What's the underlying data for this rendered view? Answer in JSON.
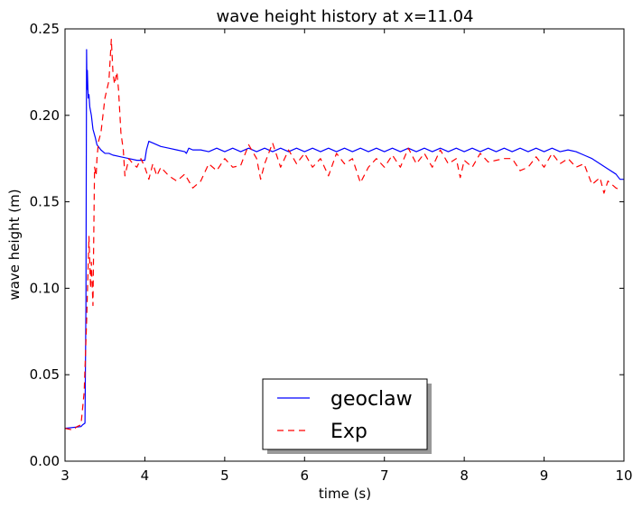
{
  "chart_data": {
    "type": "line",
    "title": "wave height history at x=11.04",
    "xlabel": "time (s)",
    "ylabel": "wave height (m)",
    "xlim": [
      3,
      10
    ],
    "ylim": [
      0,
      0.25
    ],
    "xticks": [
      3,
      4,
      5,
      6,
      7,
      8,
      9,
      10
    ],
    "xtick_labels": [
      "3",
      "4",
      "5",
      "6",
      "7",
      "8",
      "9",
      "10"
    ],
    "yticks": [
      0,
      0.05,
      0.1,
      0.15,
      0.2,
      0.25
    ],
    "ytick_labels": [
      "0.00",
      "0.05",
      "0.10",
      "0.15",
      "0.20",
      "0.25"
    ],
    "grid": false,
    "legend_position": "lower-center",
    "series": [
      {
        "name": "geoclaw",
        "color": "#0000ff",
        "dash": "solid",
        "x": [
          3.0,
          3.2,
          3.22,
          3.25,
          3.262,
          3.27,
          3.275,
          3.28,
          3.29,
          3.3,
          3.31,
          3.33,
          3.35,
          3.38,
          3.4,
          3.45,
          3.5,
          3.55,
          3.6,
          3.7,
          3.8,
          3.9,
          4.0,
          4.02,
          4.05,
          4.1,
          4.2,
          4.3,
          4.4,
          4.5,
          4.52,
          4.55,
          4.6,
          4.7,
          4.8,
          4.9,
          5.0,
          5.1,
          5.2,
          5.3,
          5.4,
          5.5,
          5.6,
          5.7,
          5.8,
          5.9,
          6.0,
          6.1,
          6.2,
          6.3,
          6.4,
          6.5,
          6.6,
          6.7,
          6.8,
          6.9,
          7.0,
          7.1,
          7.2,
          7.3,
          7.4,
          7.5,
          7.6,
          7.7,
          7.8,
          7.9,
          8.0,
          8.1,
          8.2,
          8.3,
          8.4,
          8.5,
          8.6,
          8.7,
          8.8,
          8.9,
          9.0,
          9.1,
          9.2,
          9.3,
          9.4,
          9.5,
          9.6,
          9.7,
          9.8,
          9.9,
          9.95,
          10.0
        ],
        "y": [
          0.019,
          0.02,
          0.021,
          0.022,
          0.09,
          0.238,
          0.215,
          0.226,
          0.21,
          0.212,
          0.205,
          0.2,
          0.192,
          0.187,
          0.183,
          0.18,
          0.178,
          0.178,
          0.177,
          0.176,
          0.175,
          0.174,
          0.174,
          0.18,
          0.185,
          0.184,
          0.182,
          0.181,
          0.18,
          0.179,
          0.178,
          0.181,
          0.18,
          0.18,
          0.179,
          0.181,
          0.179,
          0.181,
          0.179,
          0.181,
          0.179,
          0.181,
          0.179,
          0.181,
          0.179,
          0.181,
          0.179,
          0.181,
          0.179,
          0.181,
          0.179,
          0.181,
          0.179,
          0.181,
          0.179,
          0.181,
          0.179,
          0.181,
          0.179,
          0.181,
          0.179,
          0.181,
          0.179,
          0.181,
          0.179,
          0.181,
          0.179,
          0.181,
          0.179,
          0.181,
          0.179,
          0.181,
          0.179,
          0.181,
          0.179,
          0.181,
          0.179,
          0.181,
          0.179,
          0.18,
          0.179,
          0.177,
          0.175,
          0.172,
          0.169,
          0.166,
          0.163,
          0.163
        ]
      },
      {
        "name": "Exp",
        "color": "#ff0000",
        "dash": "dashed",
        "x": [
          3.0,
          3.1,
          3.15,
          3.2,
          3.24,
          3.27,
          3.3,
          3.32,
          3.33,
          3.35,
          3.37,
          3.39,
          3.4,
          3.42,
          3.45,
          3.5,
          3.55,
          3.58,
          3.6,
          3.62,
          3.65,
          3.67,
          3.7,
          3.73,
          3.75,
          3.8,
          3.85,
          3.9,
          3.95,
          4.0,
          4.05,
          4.1,
          4.15,
          4.2,
          4.3,
          4.4,
          4.5,
          4.6,
          4.7,
          4.8,
          4.9,
          5.0,
          5.1,
          5.2,
          5.3,
          5.4,
          5.45,
          5.5,
          5.6,
          5.7,
          5.8,
          5.9,
          6.0,
          6.1,
          6.2,
          6.3,
          6.4,
          6.5,
          6.6,
          6.7,
          6.8,
          6.9,
          7.0,
          7.1,
          7.2,
          7.3,
          7.4,
          7.5,
          7.6,
          7.7,
          7.8,
          7.9,
          7.95,
          8.0,
          8.1,
          8.2,
          8.3,
          8.4,
          8.5,
          8.6,
          8.7,
          8.8,
          8.9,
          9.0,
          9.1,
          9.2,
          9.3,
          9.4,
          9.5,
          9.6,
          9.7,
          9.75,
          9.8,
          9.9,
          9.95
        ],
        "y": [
          0.019,
          0.018,
          0.02,
          0.021,
          0.04,
          0.08,
          0.13,
          0.1,
          0.115,
          0.09,
          0.17,
          0.165,
          0.175,
          0.185,
          0.19,
          0.21,
          0.22,
          0.244,
          0.225,
          0.218,
          0.225,
          0.215,
          0.19,
          0.18,
          0.165,
          0.175,
          0.172,
          0.17,
          0.175,
          0.17,
          0.163,
          0.172,
          0.165,
          0.17,
          0.165,
          0.162,
          0.166,
          0.158,
          0.162,
          0.172,
          0.168,
          0.175,
          0.17,
          0.171,
          0.183,
          0.175,
          0.163,
          0.172,
          0.184,
          0.17,
          0.18,
          0.172,
          0.178,
          0.17,
          0.175,
          0.165,
          0.178,
          0.172,
          0.175,
          0.161,
          0.17,
          0.175,
          0.17,
          0.177,
          0.17,
          0.181,
          0.172,
          0.178,
          0.17,
          0.18,
          0.172,
          0.175,
          0.164,
          0.174,
          0.17,
          0.178,
          0.173,
          0.174,
          0.175,
          0.175,
          0.168,
          0.17,
          0.176,
          0.17,
          0.178,
          0.172,
          0.175,
          0.17,
          0.172,
          0.16,
          0.164,
          0.155,
          0.162,
          0.158,
          0.157
        ]
      }
    ]
  }
}
